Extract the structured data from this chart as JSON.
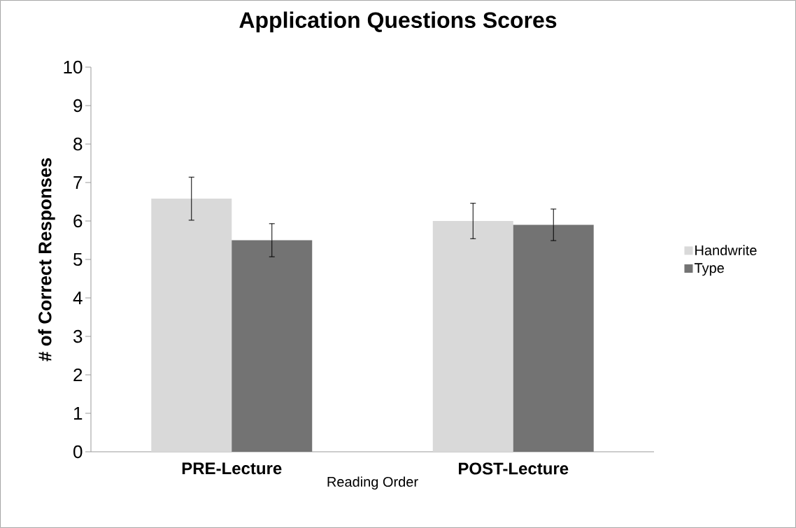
{
  "chart_data": {
    "type": "bar",
    "title": "Application Questions Scores",
    "xlabel": "Reading Order",
    "ylabel": "# of Correct Responses",
    "categories": [
      "PRE-Lecture",
      "POST-Lecture"
    ],
    "series": [
      {
        "name": "Handwrite",
        "color": "#d9d9d9",
        "values": [
          6.58,
          6.0
        ],
        "errors": [
          0.56,
          0.46
        ]
      },
      {
        "name": "Type",
        "color": "#737373",
        "values": [
          5.5,
          5.9
        ],
        "errors": [
          0.43,
          0.41
        ]
      }
    ],
    "ylim": [
      0,
      10
    ],
    "yticks": [
      0,
      1,
      2,
      3,
      4,
      5,
      6,
      7,
      8,
      9,
      10
    ],
    "grid": false,
    "legend": "right"
  }
}
